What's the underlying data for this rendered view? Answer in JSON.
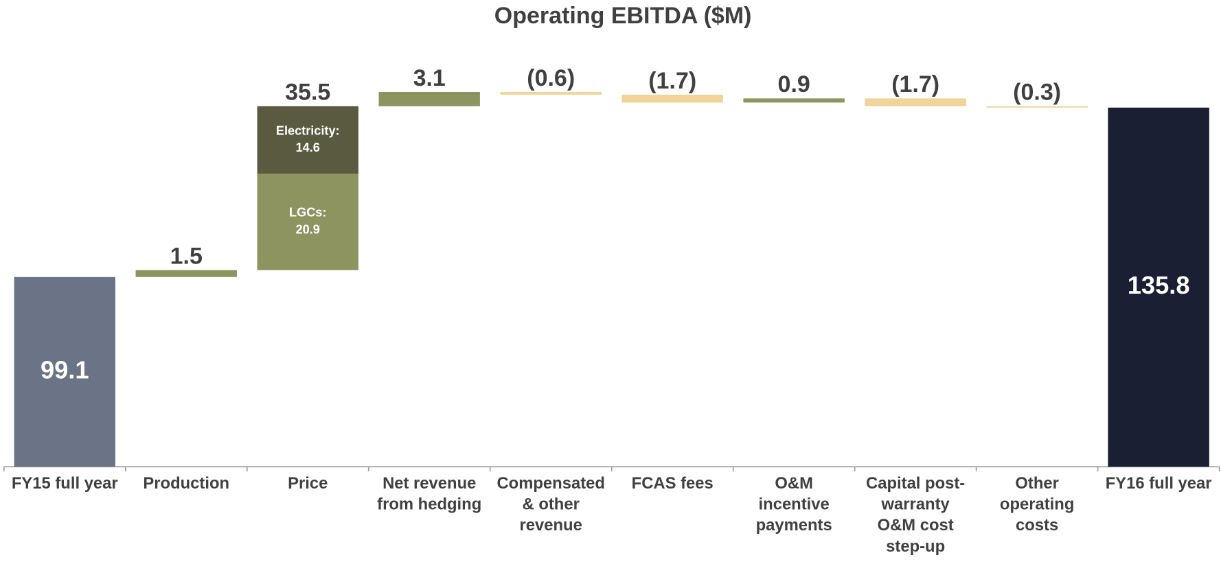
{
  "chart_data": {
    "type": "waterfall",
    "title": "Operating EBITDA ($M)",
    "categories": [
      "FY15 full year",
      "Production",
      "Price",
      "Net revenue\nfrom hedging",
      "Compensated\n& other\nrevenue",
      "FCAS fees",
      "O&M\nincentive\npayments",
      "Capital post-\nwarranty\nO&M cost\nstep-up",
      "Other\noperating\ncosts",
      "FY16 full year"
    ],
    "measure": [
      "absolute",
      "relative",
      "relative",
      "relative",
      "relative",
      "relative",
      "relative",
      "relative",
      "relative",
      "total"
    ],
    "values": [
      99.1,
      1.5,
      35.5,
      3.1,
      -0.6,
      -1.7,
      0.9,
      -1.7,
      -0.3,
      135.8
    ],
    "value_labels": [
      "99.1",
      "1.5",
      "35.5",
      "3.1",
      "(0.6)",
      "(1.7)",
      "0.9",
      "(1.7)",
      "(0.3)",
      "135.8"
    ],
    "colors": [
      "#6b7487",
      "#8e9460",
      "#8e9460",
      "#8e9460",
      "#f0d49a",
      "#f0d49a",
      "#8e9460",
      "#f0d49a",
      "#f0d49a",
      "#1a1f33"
    ],
    "breakdown": {
      "category": 2,
      "parts": [
        {
          "name": "LGCs:",
          "value": 20.9,
          "color": "#8e9460"
        },
        {
          "name": "Electricity:",
          "value": 14.6,
          "color": "#5a5a40"
        }
      ]
    },
    "ylim": [
      58,
      149
    ]
  }
}
